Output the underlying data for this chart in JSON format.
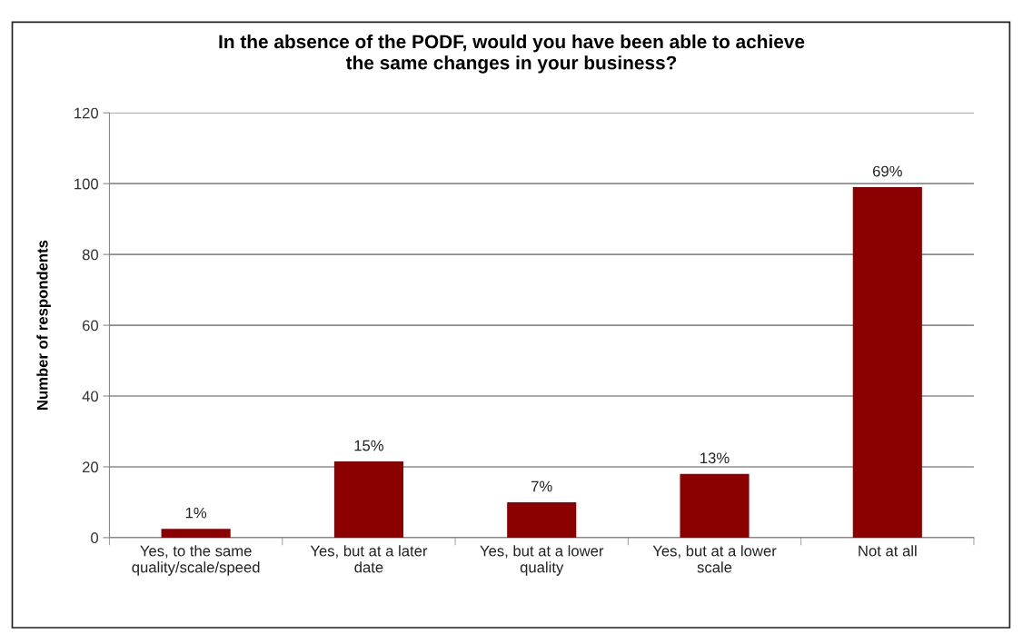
{
  "chart_data": {
    "type": "bar",
    "title": "In the absence of the PODF, would you have been able to achieve\nthe same changes in your business?",
    "ylabel": "Number of respondents",
    "categories": [
      "Yes, to the same\nquality/scale/speed",
      "Yes, but at a later\ndate",
      "Yes, but at a lower\nquality",
      "Yes, but at a lower\nscale",
      "Not at all"
    ],
    "values": [
      2.5,
      21.5,
      10,
      18,
      99
    ],
    "annotations": [
      {
        "text": "1%",
        "x": "Yes, to the same\nquality/scale/speed",
        "y": 2.5
      },
      {
        "text": "15%",
        "x": "Yes, but at a later\ndate",
        "y": 21.5
      },
      {
        "text": "7%",
        "x": "Yes, but at a lower\nquality",
        "y": 10
      },
      {
        "text": "13%",
        "x": "Yes, but at a lower\nscale",
        "y": 18
      },
      {
        "text": "69%",
        "x": "Not at all",
        "y": 99
      }
    ],
    "color": "#8b0000",
    "ylim": [
      0,
      120
    ],
    "yticks": [
      0,
      20,
      40,
      60,
      80,
      100,
      120
    ],
    "grid": "y",
    "legend": false
  }
}
